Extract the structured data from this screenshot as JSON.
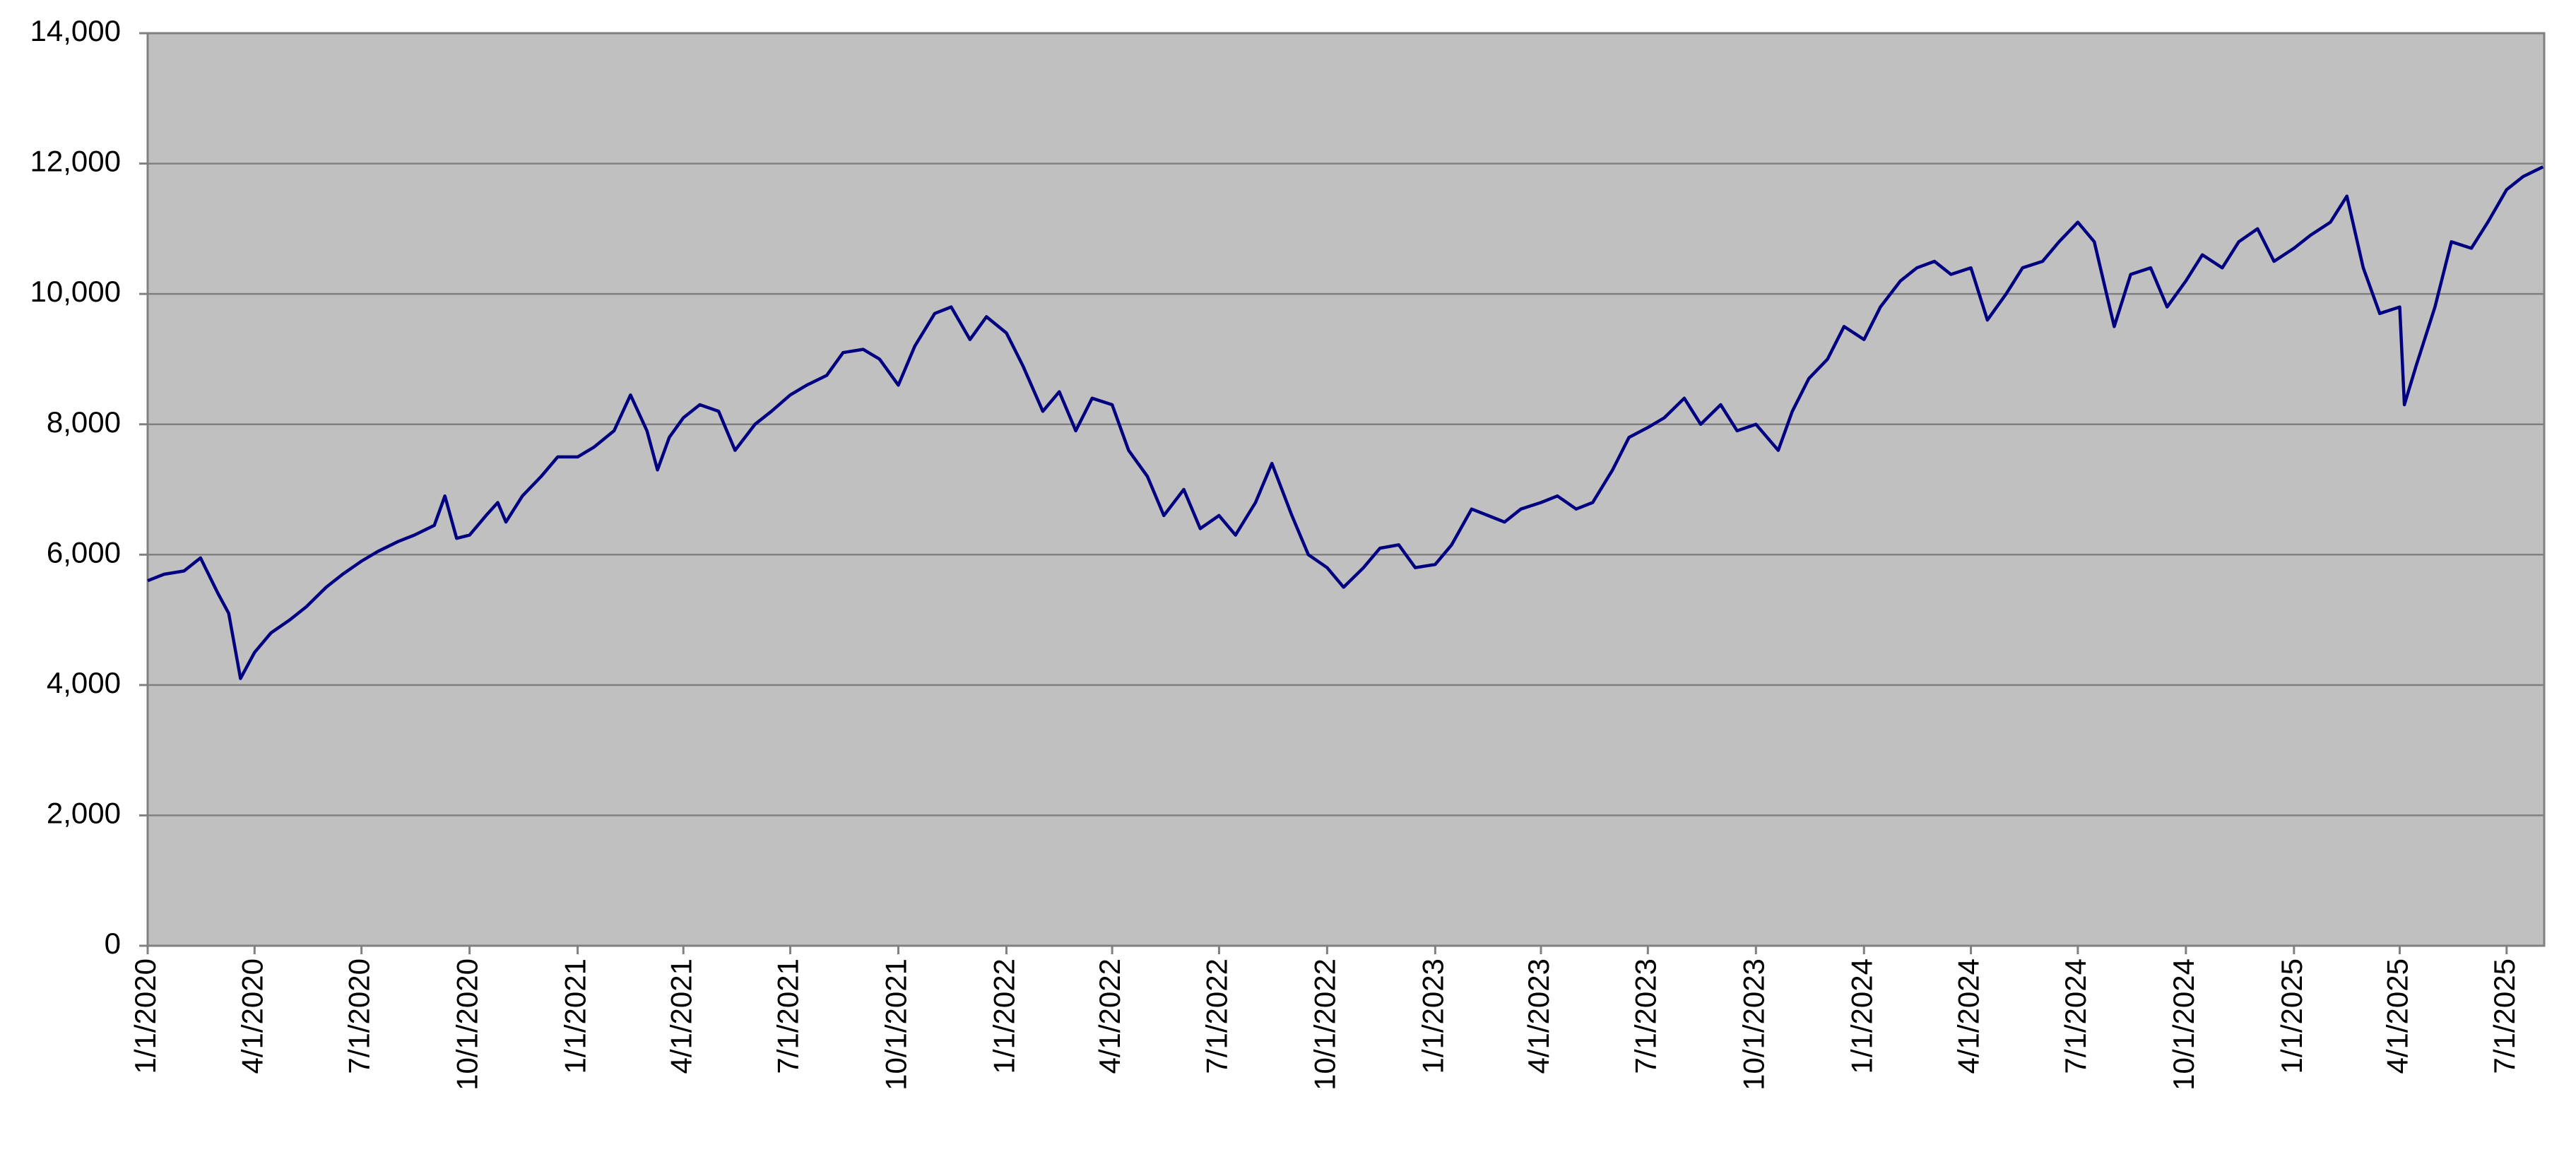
{
  "chart_data": {
    "type": "line",
    "x": [
      "2020-01-01",
      "2020-01-15",
      "2020-02-01",
      "2020-02-15",
      "2020-03-01",
      "2020-03-10",
      "2020-03-20",
      "2020-04-01",
      "2020-04-15",
      "2020-05-01",
      "2020-05-15",
      "2020-06-01",
      "2020-06-15",
      "2020-07-01",
      "2020-07-15",
      "2020-08-01",
      "2020-08-15",
      "2020-09-01",
      "2020-09-10",
      "2020-09-20",
      "2020-10-01",
      "2020-10-15",
      "2020-10-25",
      "2020-11-01",
      "2020-11-15",
      "2020-12-01",
      "2020-12-15",
      "2021-01-01",
      "2021-01-15",
      "2021-02-01",
      "2021-02-15",
      "2021-03-01",
      "2021-03-10",
      "2021-03-20",
      "2021-04-01",
      "2021-04-15",
      "2021-05-01",
      "2021-05-15",
      "2021-06-01",
      "2021-06-15",
      "2021-07-01",
      "2021-07-15",
      "2021-08-01",
      "2021-08-15",
      "2021-09-01",
      "2021-09-15",
      "2021-10-01",
      "2021-10-15",
      "2021-11-01",
      "2021-11-15",
      "2021-12-01",
      "2021-12-15",
      "2022-01-01",
      "2022-01-15",
      "2022-02-01",
      "2022-02-15",
      "2022-03-01",
      "2022-03-15",
      "2022-04-01",
      "2022-04-15",
      "2022-05-01",
      "2022-05-15",
      "2022-06-01",
      "2022-06-15",
      "2022-07-01",
      "2022-07-15",
      "2022-08-01",
      "2022-08-15",
      "2022-09-01",
      "2022-09-15",
      "2022-10-01",
      "2022-10-15",
      "2022-11-01",
      "2022-11-15",
      "2022-12-01",
      "2022-12-15",
      "2023-01-01",
      "2023-01-15",
      "2023-02-01",
      "2023-02-15",
      "2023-03-01",
      "2023-03-15",
      "2023-04-01",
      "2023-04-15",
      "2023-05-01",
      "2023-05-15",
      "2023-06-01",
      "2023-06-15",
      "2023-07-01",
      "2023-07-15",
      "2023-08-01",
      "2023-08-15",
      "2023-09-01",
      "2023-09-15",
      "2023-10-01",
      "2023-10-20",
      "2023-11-01",
      "2023-11-15",
      "2023-12-01",
      "2023-12-15",
      "2024-01-01",
      "2024-01-15",
      "2024-02-01",
      "2024-02-15",
      "2024-03-01",
      "2024-03-15",
      "2024-04-01",
      "2024-04-15",
      "2024-05-01",
      "2024-05-15",
      "2024-06-01",
      "2024-06-15",
      "2024-07-01",
      "2024-07-15",
      "2024-08-01",
      "2024-08-15",
      "2024-09-01",
      "2024-09-15",
      "2024-10-01",
      "2024-10-15",
      "2024-11-01",
      "2024-11-15",
      "2024-12-01",
      "2024-12-15",
      "2025-01-01",
      "2025-01-15",
      "2025-02-01",
      "2025-02-15",
      "2025-03-01",
      "2025-03-15",
      "2025-04-01",
      "2025-04-05",
      "2025-04-15",
      "2025-05-01",
      "2025-05-15",
      "2025-06-01",
      "2025-06-15",
      "2025-07-01",
      "2025-07-15",
      "2025-08-01"
    ],
    "series": [
      {
        "color": "#000080",
        "values": [
          5600,
          5700,
          5750,
          5950,
          5400,
          5100,
          4100,
          4500,
          4800,
          5000,
          5200,
          5500,
          5700,
          5900,
          6050,
          6200,
          6300,
          6450,
          6900,
          6250,
          6300,
          6600,
          6800,
          6500,
          6900,
          7200,
          7500,
          7500,
          7650,
          7900,
          8450,
          7900,
          7300,
          7800,
          8100,
          8300,
          8200,
          7600,
          8000,
          8200,
          8450,
          8600,
          8750,
          9100,
          9150,
          9000,
          8600,
          9200,
          9700,
          9800,
          9300,
          9650,
          9400,
          8900,
          8200,
          8500,
          7900,
          8400,
          8300,
          7600,
          7200,
          6600,
          7000,
          6400,
          6600,
          6300,
          6800,
          7400,
          6600,
          6000,
          5800,
          5500,
          5800,
          6100,
          6150,
          5800,
          5850,
          6150,
          6700,
          6600,
          6500,
          6700,
          6800,
          6900,
          6700,
          6800,
          7300,
          7800,
          7950,
          8100,
          8400,
          8000,
          8300,
          7900,
          8000,
          7600,
          8200,
          8700,
          9000,
          9500,
          9300,
          9800,
          10200,
          10400,
          10500,
          10300,
          10400,
          9600,
          10000,
          10400,
          10500,
          10800,
          11100,
          10800,
          9500,
          10300,
          10400,
          9800,
          10200,
          10600,
          10400,
          10800,
          11000,
          10500,
          10700,
          10900,
          11100,
          11500,
          10400,
          9700,
          9800,
          8300,
          8900,
          9800,
          10800,
          10700,
          11100,
          11600,
          11800,
          11950
        ]
      }
    ],
    "xlim": [
      "2020-01-01",
      "2025-08-02"
    ],
    "xticks": [
      {
        "value": "2020-01-01",
        "label": "1/1/2020"
      },
      {
        "value": "2020-04-01",
        "label": "4/1/2020"
      },
      {
        "value": "2020-07-01",
        "label": "7/1/2020"
      },
      {
        "value": "2020-10-01",
        "label": "10/1/2020"
      },
      {
        "value": "2021-01-01",
        "label": "1/1/2021"
      },
      {
        "value": "2021-04-01",
        "label": "4/1/2021"
      },
      {
        "value": "2021-07-01",
        "label": "7/1/2021"
      },
      {
        "value": "2021-10-01",
        "label": "10/1/2021"
      },
      {
        "value": "2022-01-01",
        "label": "1/1/2022"
      },
      {
        "value": "2022-04-01",
        "label": "4/1/2022"
      },
      {
        "value": "2022-07-01",
        "label": "7/1/2022"
      },
      {
        "value": "2022-10-01",
        "label": "10/1/2022"
      },
      {
        "value": "2023-01-01",
        "label": "1/1/2023"
      },
      {
        "value": "2023-04-01",
        "label": "4/1/2023"
      },
      {
        "value": "2023-07-01",
        "label": "7/1/2023"
      },
      {
        "value": "2023-10-01",
        "label": "10/1/2023"
      },
      {
        "value": "2024-01-01",
        "label": "1/1/2024"
      },
      {
        "value": "2024-04-01",
        "label": "4/1/2024"
      },
      {
        "value": "2024-07-01",
        "label": "7/1/2024"
      },
      {
        "value": "2024-10-01",
        "label": "10/1/2024"
      },
      {
        "value": "2025-01-01",
        "label": "1/1/2025"
      },
      {
        "value": "2025-04-01",
        "label": "4/1/2025"
      },
      {
        "value": "2025-07-01",
        "label": "7/1/2025"
      }
    ],
    "ylim": [
      0,
      14000
    ],
    "yticks": [
      0,
      {
        "value": 2000,
        "label": "2,000"
      },
      {
        "value": 4000,
        "label": "4,000"
      },
      {
        "value": 6000,
        "label": "6,000"
      },
      {
        "value": 8000,
        "label": "8,000"
      },
      {
        "value": 10000,
        "label": "10,000"
      },
      {
        "value": 12000,
        "label": "12,000"
      },
      {
        "value": 14000,
        "label": "14,000"
      }
    ],
    "grid": true,
    "background": "#c0c0c0"
  }
}
